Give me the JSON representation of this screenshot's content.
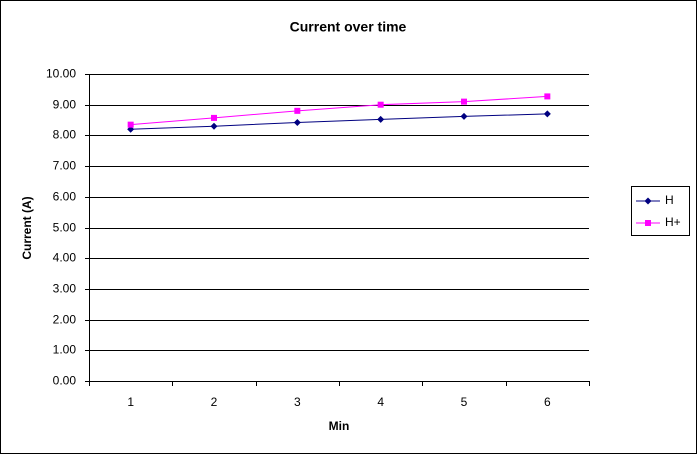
{
  "chart_data": {
    "type": "line",
    "title": "Current over time",
    "x_label": "Min",
    "y_label": "Current (A)",
    "categories": [
      "1",
      "2",
      "3",
      "4",
      "5",
      "6"
    ],
    "series": [
      {
        "name": "H",
        "color": "#000080",
        "marker": "diamond",
        "values": [
          8.2,
          8.3,
          8.42,
          8.52,
          8.62,
          8.7
        ]
      },
      {
        "name": "H+",
        "color": "#ff00ff",
        "marker": "square",
        "values": [
          8.35,
          8.57,
          8.8,
          9.0,
          9.1,
          9.27
        ]
      }
    ],
    "ylim": [
      0,
      10
    ],
    "yticks": [
      {
        "value": 0,
        "label": "0.00"
      },
      {
        "value": 1,
        "label": "1.00"
      },
      {
        "value": 2,
        "label": "2.00"
      },
      {
        "value": 3,
        "label": "3.00"
      },
      {
        "value": 4,
        "label": "4.00"
      },
      {
        "value": 5,
        "label": "5.00"
      },
      {
        "value": 6,
        "label": "6.00"
      },
      {
        "value": 7,
        "label": "7.00"
      },
      {
        "value": 8,
        "label": "8.00"
      },
      {
        "value": 9,
        "label": "9.00"
      },
      {
        "value": 10,
        "label": "10.00"
      }
    ],
    "grid": true,
    "legend": "right"
  }
}
